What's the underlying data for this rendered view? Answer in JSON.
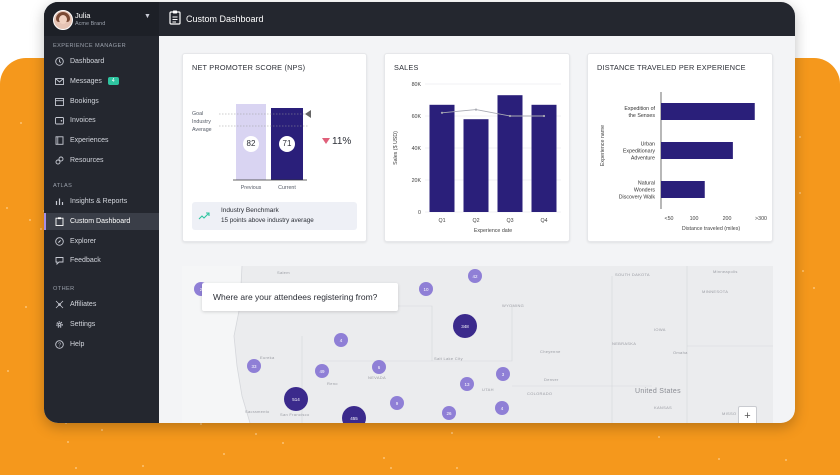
{
  "user": {
    "name": "Julia",
    "brand": "Acme Brand"
  },
  "sidebar": {
    "sections": [
      {
        "label": "EXPERIENCE MANAGER",
        "items": [
          {
            "label": "Dashboard",
            "icon": "clock-icon"
          },
          {
            "label": "Messages",
            "icon": "mail-icon",
            "badge": "4"
          },
          {
            "label": "Bookings",
            "icon": "calendar-icon"
          },
          {
            "label": "Invoices",
            "icon": "wallet-icon"
          },
          {
            "label": "Experiences",
            "icon": "book-icon"
          },
          {
            "label": "Resources",
            "icon": "link-icon"
          }
        ]
      },
      {
        "label": "ATLAS",
        "items": [
          {
            "label": "Insights & Reports",
            "icon": "chart-icon"
          },
          {
            "label": "Custom Dashboard",
            "icon": "clipboard-icon",
            "active": true
          },
          {
            "label": "Explorer",
            "icon": "compass-icon"
          },
          {
            "label": "Feedback",
            "icon": "chat-icon"
          }
        ]
      },
      {
        "label": "OTHER",
        "items": [
          {
            "label": "Affiliates",
            "icon": "network-icon"
          },
          {
            "label": "Settings",
            "icon": "gear-icon"
          },
          {
            "label": "Help",
            "icon": "help-icon"
          }
        ]
      }
    ]
  },
  "topbar": {
    "title": "Custom Dashboard"
  },
  "nps": {
    "title": "NET PROMOTER SCORE (NPS)",
    "goal_label": "Goal",
    "industry_label_1": "Industry",
    "industry_label_2": "Average",
    "previous_value": "82",
    "current_value": "71",
    "previous_label": "Previous",
    "current_label": "Current",
    "change": "11%",
    "benchmark_title": "Industry Benchmark",
    "benchmark_text": "15 points above industry average",
    "colors": {
      "previous": "#d9d4f2",
      "current": "#2a1f7a",
      "down": "#e0607a"
    }
  },
  "chart_data": [
    {
      "type": "bar",
      "title": "SALES",
      "categories": [
        "Q1",
        "Q2",
        "Q3",
        "Q4"
      ],
      "values": [
        67000,
        58000,
        73000,
        67000
      ],
      "line_values": [
        62000,
        64000,
        60000,
        60000
      ],
      "xlabel": "Experience date",
      "ylabel": "Sales ($ USD)",
      "yticks": [
        "0",
        "20K",
        "40K",
        "60K",
        "80K"
      ],
      "ylim": [
        0,
        80000
      ],
      "color": "#2a1f7a"
    },
    {
      "type": "bar",
      "orientation": "horizontal",
      "title": "DISTANCE TRAVELED PER EXPERIENCE",
      "categories": [
        [
          "Expedition of",
          "the Senses"
        ],
        [
          "Urban",
          "Expeditionary",
          "Adventure"
        ],
        [
          "Natural",
          "Wonders",
          "Discovery Walk"
        ]
      ],
      "values": [
        300,
        230,
        140
      ],
      "xlabel": "Distance traveled (miles)",
      "ylabel": "Experience name",
      "xticks": [
        "<50",
        "100",
        "200",
        ">300"
      ],
      "xlim": [
        0,
        320
      ],
      "color": "#2a1f7a"
    }
  ],
  "map": {
    "question": "Where are your attendees registering from?",
    "plus_label": "+",
    "clusters": [
      {
        "label": "2",
        "size": "s"
      },
      {
        "label": "42",
        "size": "s"
      },
      {
        "label": "10",
        "size": "s"
      },
      {
        "label": "348",
        "size": "m",
        "dark": true
      },
      {
        "label": "4",
        "size": "s"
      },
      {
        "label": "33",
        "size": "s"
      },
      {
        "label": "49",
        "size": "s"
      },
      {
        "label": "6",
        "size": "s"
      },
      {
        "label": "13",
        "size": "s"
      },
      {
        "label": "3",
        "size": "s"
      },
      {
        "label": "514",
        "size": "m",
        "dark": true
      },
      {
        "label": "9",
        "size": "s"
      },
      {
        "label": "26",
        "size": "s"
      },
      {
        "label": "4",
        "size": "s"
      },
      {
        "label": "455",
        "size": "m",
        "dark": true
      }
    ],
    "labels": [
      "Salem",
      "SOUTH DAKOTA",
      "Minneapolis",
      "MINNESOTA",
      "WYOMING",
      "IOWA",
      "Eureka",
      "Salt Lake City",
      "Cheyenne",
      "NEBRASKA",
      "Omaha",
      "Reno",
      "NEVADA",
      "UTAH",
      "Denver",
      "Sacramento",
      "COLORADO",
      "KANSAS",
      "San Francisco",
      "United States",
      "MISSO"
    ]
  }
}
